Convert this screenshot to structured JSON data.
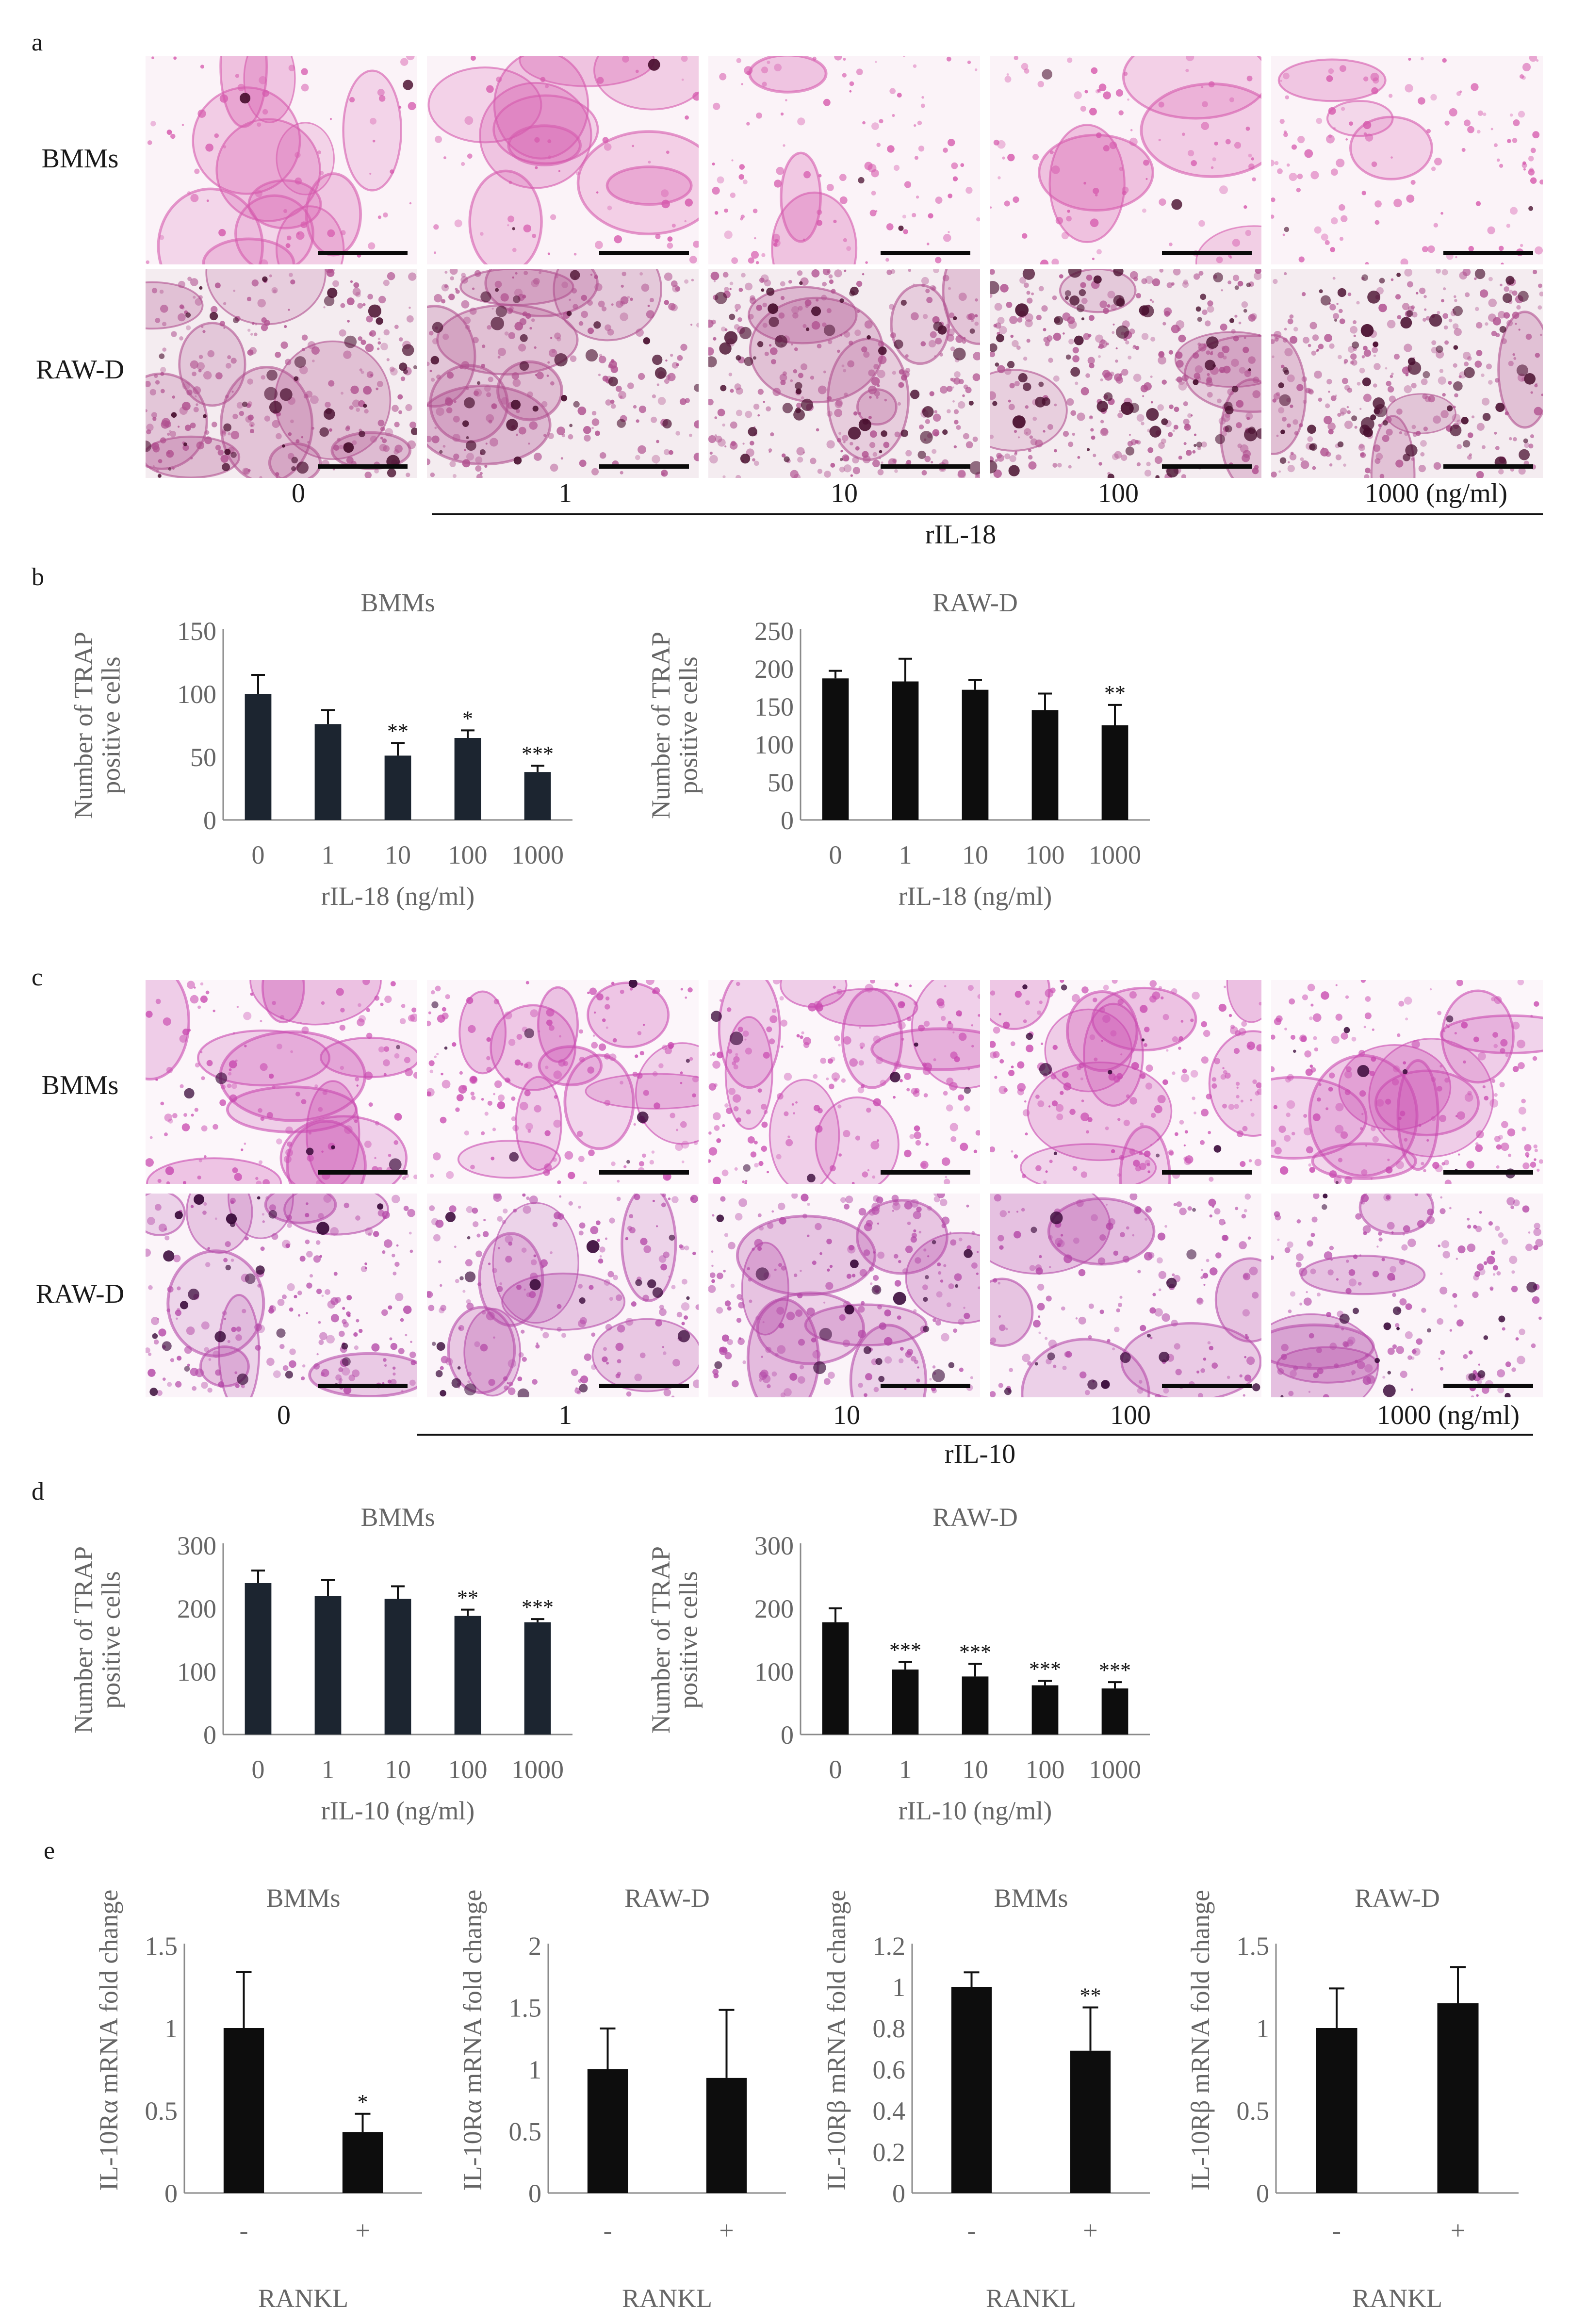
{
  "panels": {
    "a": "a",
    "b": "b",
    "c": "c",
    "d": "d",
    "e": "e"
  },
  "micrographs": {
    "rows": [
      "BMMs",
      "RAW-D"
    ],
    "panel_a": {
      "conditions": [
        "0",
        "1",
        "10",
        "100",
        "1000 (ng/ml)"
      ],
      "treatment": "rIL-18",
      "colors": {
        "bmm": "#d65aad",
        "raw": "#b0508f",
        "dark": "#4a1030"
      }
    },
    "panel_c": {
      "conditions": [
        "0",
        "1",
        "10",
        "100",
        "1000 (ng/ml)"
      ],
      "treatment": "rIL-10",
      "colors": {
        "bmm": "#c94bb0",
        "raw": "#b54aa8",
        "dark": "#3a0a3a"
      }
    }
  },
  "chart_data": [
    {
      "id": "b-bmm",
      "type": "bar",
      "title": "BMMs",
      "ylabel_lines": [
        "Number of TRAP",
        "positive cells"
      ],
      "xlabel": "rIL-18 (ng/ml)",
      "categories": [
        "0",
        "1",
        "10",
        "100",
        "1000"
      ],
      "values": [
        100,
        76,
        51,
        65,
        38
      ],
      "errors": [
        15,
        11,
        10,
        6,
        5
      ],
      "significance": [
        "",
        "",
        "**",
        "*",
        "***"
      ],
      "ylim": [
        0,
        150
      ],
      "yticks": [
        "0",
        "50",
        "100",
        "150"
      ],
      "bar_color": "#1c2530"
    },
    {
      "id": "b-raw",
      "type": "bar",
      "title": "RAW-D",
      "ylabel_lines": [
        "Number of TRAP",
        "positive cells"
      ],
      "xlabel": "rIL-18 (ng/ml)",
      "categories": [
        "0",
        "1",
        "10",
        "100",
        "1000"
      ],
      "values": [
        187,
        183,
        172,
        145,
        125
      ],
      "errors": [
        10,
        30,
        13,
        22,
        27
      ],
      "significance": [
        "",
        "",
        "",
        "",
        "**"
      ],
      "ylim": [
        0,
        250
      ],
      "yticks": [
        "0",
        "50",
        "100",
        "150",
        "200",
        "250"
      ],
      "bar_color": "#0d0d0d"
    },
    {
      "id": "d-bmm",
      "type": "bar",
      "title": "BMMs",
      "ylabel_lines": [
        "Number of TRAP",
        "positive cells"
      ],
      "xlabel": "rIL-10 (ng/ml)",
      "categories": [
        "0",
        "1",
        "10",
        "100",
        "1000"
      ],
      "values": [
        240,
        220,
        215,
        188,
        178
      ],
      "errors": [
        20,
        25,
        20,
        10,
        5
      ],
      "significance": [
        "",
        "",
        "",
        "**",
        "***"
      ],
      "ylim": [
        0,
        300
      ],
      "yticks": [
        "0",
        "100",
        "200",
        "300"
      ],
      "bar_color": "#1c2530"
    },
    {
      "id": "d-raw",
      "type": "bar",
      "title": "RAW-D",
      "ylabel_lines": [
        "Number of TRAP",
        "positive cells"
      ],
      "xlabel": "rIL-10 (ng/ml)",
      "categories": [
        "0",
        "1",
        "10",
        "100",
        "1000"
      ],
      "values": [
        178,
        103,
        92,
        78,
        73
      ],
      "errors": [
        22,
        12,
        20,
        7,
        10
      ],
      "significance": [
        "",
        "***",
        "***",
        "***",
        "***"
      ],
      "ylim": [
        0,
        300
      ],
      "yticks": [
        "0",
        "100",
        "200",
        "300"
      ],
      "bar_color": "#0d0d0d"
    },
    {
      "id": "e-1",
      "type": "bar",
      "title": "BMMs",
      "ylabel_lines": [
        "IL-10Rα mRNA fold change"
      ],
      "xlabel": "RANKL",
      "categories": [
        "-",
        "+"
      ],
      "values": [
        1.0,
        0.37
      ],
      "errors": [
        0.34,
        0.11
      ],
      "significance": [
        "",
        "*"
      ],
      "ylim": [
        0,
        1.5
      ],
      "yticks": [
        "0",
        "0.5",
        "1",
        "1.5"
      ],
      "bar_color": "#0d0d0d"
    },
    {
      "id": "e-2",
      "type": "bar",
      "title": "RAW-D",
      "ylabel_lines": [
        "IL-10Rα mRNA fold change"
      ],
      "xlabel": "RANKL",
      "categories": [
        "-",
        "+"
      ],
      "values": [
        1.0,
        0.93
      ],
      "errors": [
        0.33,
        0.55
      ],
      "significance": [
        "",
        ""
      ],
      "ylim": [
        0,
        2
      ],
      "yticks": [
        "0",
        "0.5",
        "1",
        "1.5",
        "2"
      ],
      "bar_color": "#0d0d0d"
    },
    {
      "id": "e-3",
      "type": "bar",
      "title": "BMMs",
      "ylabel_lines": [
        "IL-10Rβ mRNA fold change"
      ],
      "xlabel": "RANKL",
      "categories": [
        "-",
        "+"
      ],
      "values": [
        1.0,
        0.69
      ],
      "errors": [
        0.07,
        0.21
      ],
      "significance": [
        "",
        "**"
      ],
      "ylim": [
        0,
        1.2
      ],
      "yticks": [
        "0",
        "0.2",
        "0.4",
        "0.6",
        "0.8",
        "1",
        "1.2"
      ],
      "bar_color": "#0d0d0d"
    },
    {
      "id": "e-4",
      "type": "bar",
      "title": "RAW-D",
      "ylabel_lines": [
        "IL-10Rβ mRNA fold change"
      ],
      "xlabel": "RANKL",
      "categories": [
        "-",
        "+"
      ],
      "values": [
        1.0,
        1.15
      ],
      "errors": [
        0.24,
        0.22
      ],
      "significance": [
        "",
        ""
      ],
      "ylim": [
        0,
        1.5
      ],
      "yticks": [
        "0",
        "0.5",
        "1",
        "1.5"
      ],
      "bar_color": "#0d0d0d"
    }
  ]
}
